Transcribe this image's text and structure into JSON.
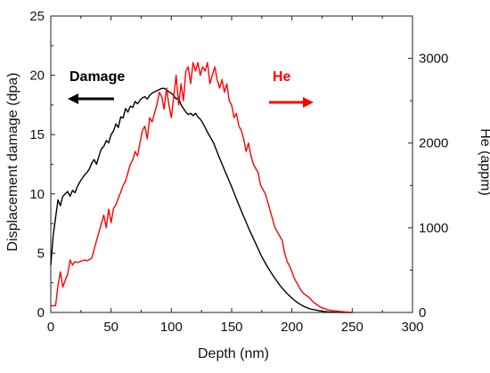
{
  "chart_data": {
    "type": "line",
    "title": "",
    "xlabel": "Depth (nm)",
    "ylabel_left": "Displacement damage (dpa)",
    "ylabel_right": "He (appm)",
    "xlim": [
      0,
      300
    ],
    "ylim_left": [
      0,
      25
    ],
    "ylim_right": [
      0,
      3500
    ],
    "x_ticks": [
      "0",
      "50",
      "100",
      "150",
      "200",
      "250",
      "300"
    ],
    "y_left_ticks": [
      "0",
      "5",
      "10",
      "15",
      "20",
      "25"
    ],
    "y_right_ticks": [
      "0",
      "1000",
      "2000",
      "3000"
    ],
    "grid": false,
    "annotations": [
      {
        "text": "Damage",
        "color": "#000000",
        "arrow": "left"
      },
      {
        "text": "He",
        "color": "#ff0000",
        "arrow": "right"
      }
    ],
    "series": [
      {
        "name": "Damage",
        "axis": "left",
        "color": "#000000",
        "x": [
          0,
          2,
          4,
          6,
          8,
          10,
          12,
          14,
          16,
          18,
          20,
          22,
          24,
          26,
          28,
          30,
          32,
          34,
          36,
          38,
          40,
          42,
          44,
          46,
          48,
          50,
          52,
          54,
          56,
          58,
          60,
          62,
          64,
          66,
          68,
          70,
          72,
          74,
          76,
          78,
          80,
          82,
          84,
          86,
          88,
          90,
          92,
          94,
          96,
          98,
          100,
          102,
          104,
          106,
          108,
          110,
          112,
          114,
          116,
          118,
          120,
          122,
          124,
          126,
          128,
          130,
          135,
          140,
          145,
          150,
          155,
          160,
          165,
          170,
          175,
          180,
          185,
          190,
          195,
          200,
          205,
          210,
          215,
          220,
          225,
          230,
          235,
          240,
          245,
          250
        ],
        "y": [
          4.0,
          6.5,
          8.0,
          9.5,
          9.0,
          9.8,
          10.0,
          10.2,
          9.8,
          10.3,
          10.1,
          10.6,
          11.0,
          11.3,
          11.6,
          11.8,
          12.1,
          12.6,
          12.9,
          12.5,
          13.2,
          13.8,
          14.0,
          14.5,
          14.3,
          15.0,
          15.3,
          15.9,
          15.6,
          16.5,
          16.4,
          17.2,
          16.9,
          17.4,
          17.3,
          17.8,
          17.6,
          17.9,
          18.1,
          18.2,
          18.0,
          18.3,
          18.5,
          18.6,
          18.7,
          18.8,
          18.9,
          18.9,
          18.8,
          18.6,
          18.5,
          18.3,
          18.0,
          18.1,
          17.5,
          17.2,
          16.9,
          16.7,
          16.8,
          16.6,
          16.8,
          16.5,
          16.3,
          16.0,
          15.6,
          15.2,
          14.3,
          13.0,
          11.8,
          10.6,
          9.3,
          8.1,
          6.9,
          5.8,
          4.7,
          3.8,
          3.0,
          2.3,
          1.7,
          1.2,
          0.8,
          0.5,
          0.3,
          0.2,
          0.1,
          0.05,
          0.02,
          0.01,
          0.0,
          0.0
        ]
      },
      {
        "name": "He",
        "axis": "right",
        "color": "#ff0000",
        "x": [
          0,
          4,
          6,
          8,
          10,
          12,
          14,
          16,
          18,
          20,
          22,
          24,
          26,
          28,
          30,
          34,
          38,
          42,
          44,
          46,
          48,
          50,
          52,
          54,
          56,
          58,
          60,
          62,
          64,
          66,
          68,
          70,
          72,
          74,
          76,
          78,
          80,
          82,
          84,
          86,
          88,
          90,
          92,
          94,
          96,
          98,
          100,
          102,
          104,
          106,
          108,
          110,
          112,
          114,
          116,
          118,
          120,
          122,
          124,
          126,
          128,
          130,
          132,
          134,
          136,
          138,
          140,
          142,
          144,
          146,
          148,
          150,
          152,
          154,
          156,
          158,
          160,
          162,
          164,
          166,
          168,
          170,
          172,
          174,
          176,
          178,
          180,
          182,
          184,
          186,
          188,
          190,
          192,
          194,
          196,
          198,
          200,
          202,
          204,
          206,
          208,
          210,
          212,
          214,
          216,
          218,
          220,
          222,
          224,
          226,
          228,
          230,
          232,
          234,
          236,
          238,
          240,
          242,
          244,
          246,
          248,
          250
        ],
        "y": [
          80,
          80,
          320,
          480,
          300,
          380,
          450,
          620,
          560,
          600,
          590,
          600,
          610,
          620,
          610,
          640,
          850,
          1050,
          1150,
          1000,
          1220,
          1060,
          1230,
          1270,
          1350,
          1420,
          1500,
          1550,
          1650,
          1750,
          1800,
          1900,
          1850,
          2000,
          2150,
          2200,
          2050,
          2300,
          2250,
          2350,
          2450,
          2600,
          2550,
          2400,
          2650,
          2450,
          2300,
          2550,
          2800,
          2450,
          2700,
          2500,
          2850,
          2900,
          2700,
          2950,
          2850,
          2950,
          2800,
          2900,
          2850,
          2950,
          2700,
          2800,
          2900,
          2750,
          2650,
          2750,
          2600,
          2700,
          2500,
          2450,
          2300,
          2350,
          2200,
          2150,
          2050,
          1900,
          2000,
          1850,
          1750,
          1700,
          1650,
          1500,
          1450,
          1400,
          1300,
          1200,
          1100,
          1000,
          950,
          900,
          850,
          700,
          600,
          550,
          480,
          400,
          350,
          300,
          250,
          220,
          200,
          180,
          150,
          120,
          100,
          80,
          60,
          50,
          40,
          30,
          25,
          20,
          20,
          15,
          10,
          10,
          5,
          5,
          0,
          0
        ]
      }
    ]
  }
}
